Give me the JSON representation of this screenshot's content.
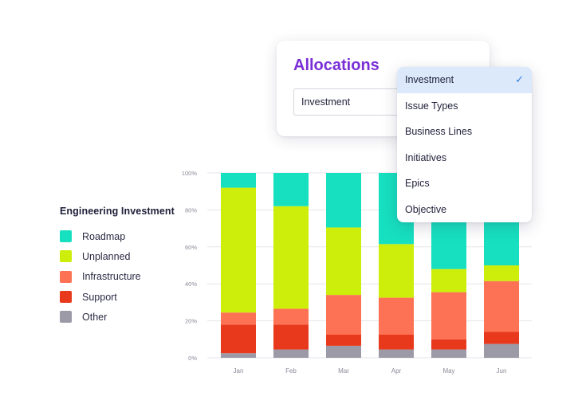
{
  "legend": {
    "title": "Engineering Investment",
    "items": [
      {
        "label": "Roadmap",
        "color": "#17e0c0"
      },
      {
        "label": "Unplanned",
        "color": "#cdee0a"
      },
      {
        "label": "Infrastructure",
        "color": "#fd7254"
      },
      {
        "label": "Support",
        "color": "#e8391c"
      },
      {
        "label": "Other",
        "color": "#9c9aa6"
      }
    ]
  },
  "allocations": {
    "title": "Allocations",
    "selected_value": "Investment"
  },
  "dropdown": {
    "options": [
      "Investment",
      "Issue Types",
      "Business Lines",
      "Initiatives",
      "Epics",
      "Objective"
    ],
    "selected_index": 0
  },
  "chart_data": {
    "type": "bar",
    "stacked": true,
    "categories": [
      "Jan",
      "Feb",
      "Mar",
      "Apr",
      "May",
      "Jun"
    ],
    "y_ticks": [
      "0%",
      "20%",
      "40%",
      "60%",
      "80%",
      "100%"
    ],
    "ylim": [
      0,
      100
    ],
    "grid": true,
    "series": [
      {
        "name": "Other",
        "color": "#9c9aa6",
        "values": [
          2.5,
          4.5,
          6.5,
          4.5,
          4.5,
          7.5
        ]
      },
      {
        "name": "Support",
        "color": "#e8391c",
        "values": [
          15.5,
          13.5,
          6,
          8,
          5.5,
          6.5
        ]
      },
      {
        "name": "Infrastructure",
        "color": "#fd7254",
        "values": [
          6.5,
          8.5,
          21.5,
          20,
          25.5,
          27.5
        ]
      },
      {
        "name": "Unplanned",
        "color": "#cdee0a",
        "values": [
          67.5,
          55.5,
          36.5,
          29,
          12.5,
          8.5
        ]
      },
      {
        "name": "Roadmap",
        "color": "#17e0c0",
        "values": [
          8,
          18,
          29.5,
          38.5,
          52,
          50
        ]
      }
    ]
  }
}
